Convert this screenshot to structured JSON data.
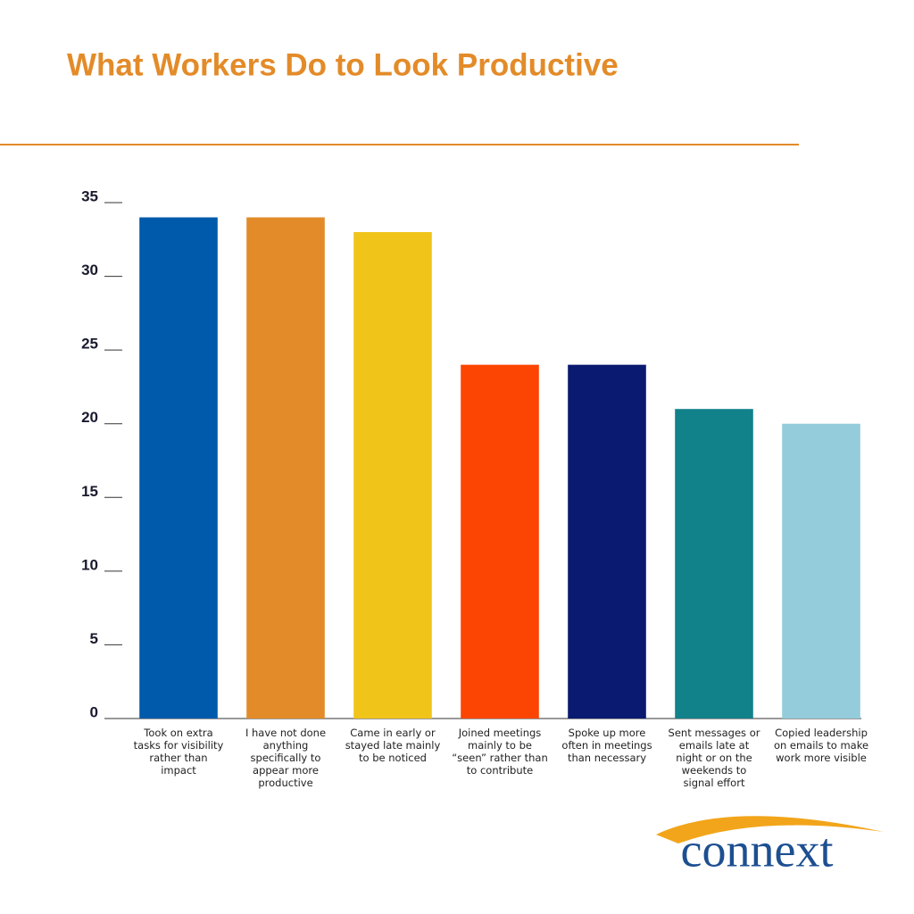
{
  "chart_data": {
    "type": "bar",
    "title": "What Workers Do to Look Productive",
    "categories": [
      "Took on extra tasks for visibility rather than impact",
      "I have not done anything specifically to appear more productive",
      "Came in early or stayed late mainly to be noticed",
      "Joined meetings mainly to be “seen” rather than to contribute",
      "Spoke up more often in meetings than necessary",
      "Sent messages or emails late at night or on the weekends to signal effort",
      "Copied leadership on emails to make work more visible"
    ],
    "values": [
      34,
      34,
      33,
      24,
      24,
      21,
      20
    ],
    "colors": [
      "#005aab",
      "#e38b29",
      "#f0c419",
      "#fc4503",
      "#0a1a70",
      "#12828a",
      "#94ccdb"
    ],
    "ylim": [
      0,
      35
    ],
    "yticks": [
      0,
      5,
      10,
      15,
      20,
      25,
      30,
      35
    ],
    "grid": false
  },
  "logo": "connext"
}
